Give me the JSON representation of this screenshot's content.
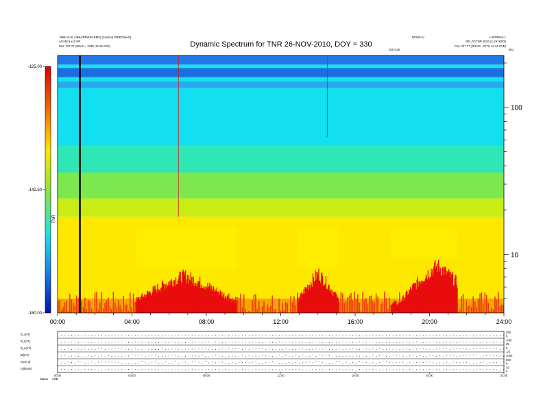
{
  "chart_data": {
    "type": "heatmap",
    "title": "Dynamic Spectrum for TNR 26-NOV-2010, DOY = 330",
    "header": {
      "left_line1": "1999-11-01 (JIMU/RPWS/LRMS) (Cassini) ORBIT(MAG)",
      "left_line2": "A/S 99.9 ±10 DR",
      "left_line3": "Pos: 227.74 (255.51, -2239, 24.29 GSE)",
      "right_top_a": "RPWS-IV",
      "right_top_b": "L-2/PRIM-5.1",
      "right_line2": "RP_FC/TNR 2010-11-29 00000",
      "right_line3": "Pos: 227.77 (255.23, -2379, 24.34 GSE)",
      "center_small": "DOY330",
      "khz_label": "kHz"
    },
    "x_axis": {
      "ticks": [
        "00:00",
        "04:00",
        "08:00",
        "12:00",
        "16:00",
        "20:00",
        "24:00"
      ],
      "range_hours": [
        0,
        24
      ]
    },
    "y_axis": {
      "scale": "log",
      "unit": "kHz",
      "range": [
        4,
        225
      ],
      "ticks": [
        "100",
        "10"
      ],
      "tick_values": [
        100,
        10
      ]
    },
    "colorbar": {
      "ticks": [
        "-125.00",
        "-142.50",
        "-160.00"
      ],
      "tick_values": [
        -125,
        -142.5,
        -160
      ],
      "label": "TNR",
      "colors": [
        "#e00000",
        "#f07000",
        "#ffe600",
        "#9fe030",
        "#20e0e0",
        "#1a8ae8",
        "#0010b0"
      ]
    },
    "spectrum_bands": [
      {
        "f_low": 4,
        "f_high": 5,
        "color": "#f6a400"
      },
      {
        "f_low": 5,
        "f_high": 18,
        "color": "#ffe800"
      },
      {
        "f_low": 18,
        "f_high": 24,
        "color": "#c8ec14"
      },
      {
        "f_low": 24,
        "f_high": 36,
        "color": "#7ce84e"
      },
      {
        "f_low": 36,
        "f_high": 55,
        "color": "#2ee6b6"
      },
      {
        "f_low": 55,
        "f_high": 135,
        "color": "#12dff0"
      },
      {
        "f_low": 135,
        "f_high": 150,
        "color": "#2aa8ec"
      },
      {
        "f_low": 150,
        "f_high": 160,
        "color": "#10e4f0"
      },
      {
        "f_low": 160,
        "f_high": 185,
        "color": "#1a6ee0"
      },
      {
        "f_low": 185,
        "f_high": 195,
        "color": "#10e4f0"
      },
      {
        "f_low": 195,
        "f_high": 225,
        "color": "#2278e6"
      }
    ],
    "intensity_bursts": [
      {
        "t_start": 4.2,
        "t_end": 9.6,
        "f_top": 8,
        "peak_t": 6.8
      },
      {
        "t_start": 12.9,
        "t_end": 15.1,
        "f_top": 8.3,
        "peak_t": 14.0
      },
      {
        "t_start": 17.9,
        "t_end": 21.5,
        "f_top": 9.5,
        "peak_t": 20.4
      }
    ],
    "spike_lines": [
      {
        "t": 1.2,
        "f_low": 4,
        "f_high": 225,
        "color": "#000000"
      },
      {
        "t": 6.5,
        "f_low": 18,
        "f_high": 225,
        "color": "#d02020"
      },
      {
        "t": 14.5,
        "f_low": 63,
        "f_high": 225,
        "color": "#d02020"
      }
    ],
    "lower_panel": {
      "left_labels": [
        "B_r(nT)",
        "B_t(nT)",
        "B_n(nT)",
        "|B|(nT)",
        "n(cm-3)",
        "|V|(km/s)"
      ],
      "right_labels": [
        "250",
        "0",
        "-250",
        "25",
        "0",
        "-25",
        "1000",
        "500",
        "0",
        "10",
        "0"
      ],
      "x_ticks": [
        "00:00",
        "04:00",
        "08:00",
        "12:00",
        "16:00",
        "20:00",
        "24:00"
      ],
      "footer_labels": [
        "Status",
        "ASB"
      ]
    }
  }
}
